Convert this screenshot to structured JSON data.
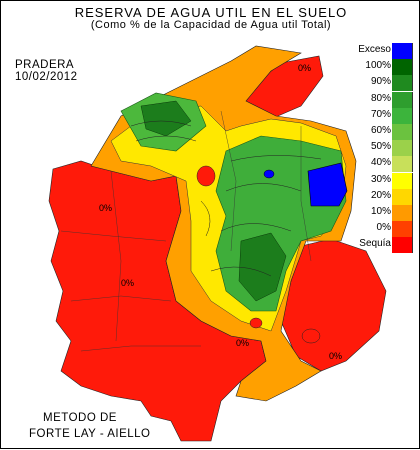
{
  "title": {
    "line1": "RESERVA DE AGUA UTIL EN EL SUELO",
    "line2": "(Como % de la Capacidad de  Agua util Total)"
  },
  "crop": "PRADERA",
  "date": "10/02/2012",
  "method": {
    "line1": "METODO DE",
    "line2": "FORTE LAY - AIELLO"
  },
  "legend": [
    {
      "label": "Exceso",
      "color": "#0000ff"
    },
    {
      "label": "100%",
      "color": "#006400"
    },
    {
      "label": "90%",
      "color": "#1f8a1f"
    },
    {
      "label": "80%",
      "color": "#2e9e2e"
    },
    {
      "label": "70%",
      "color": "#3cb43c"
    },
    {
      "label": "60%",
      "color": "#6bc23f"
    },
    {
      "label": "50%",
      "color": "#9bd14a"
    },
    {
      "label": "40%",
      "color": "#c8e05a"
    },
    {
      "label": "30%",
      "color": "#ffff00"
    },
    {
      "label": "20%",
      "color": "#ffd700"
    },
    {
      "label": "10%",
      "color": "#ff9a00"
    },
    {
      "label": "0%",
      "color": "#ff4000"
    },
    {
      "label": "Sequía",
      "color": "#ff0000"
    }
  ],
  "map_labels": {
    "zero_ne": "0%",
    "zero_w1": "0%",
    "zero_w2": "0%",
    "zero_s": "0%",
    "zero_se": "0%"
  }
}
